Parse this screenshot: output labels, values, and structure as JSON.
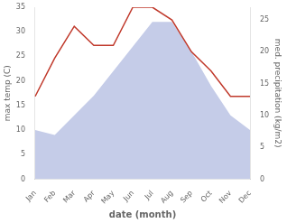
{
  "chart_data": {
    "type": "line",
    "xlabel": "date (month)",
    "ylabel": "max temp (C)",
    "y2label": "med. precipitation (kg/m2)",
    "categories": [
      "Jan",
      "Feb",
      "Mar",
      "Apr",
      "May",
      "Jun",
      "Jul",
      "Aug",
      "Sep",
      "Oct",
      "Nov",
      "Dec"
    ],
    "series": [
      {
        "type": "area",
        "color": "#c5cce8",
        "values": [
          10,
          9,
          13,
          17,
          22,
          27,
          32,
          32,
          26,
          19,
          13,
          10
        ]
      },
      {
        "type": "line",
        "color": "#c0392b",
        "axis": "y2",
        "values": [
          13,
          19,
          24,
          21,
          21,
          27,
          27,
          25,
          20,
          17,
          13,
          13
        ]
      }
    ],
    "ylim": [
      0,
      35
    ],
    "yticks": [
      0,
      5,
      10,
      15,
      20,
      25,
      30,
      35
    ],
    "y2lim": [
      0,
      27
    ],
    "y2ticks": [
      0,
      5,
      10,
      15,
      20,
      25
    ],
    "grid": false
  }
}
